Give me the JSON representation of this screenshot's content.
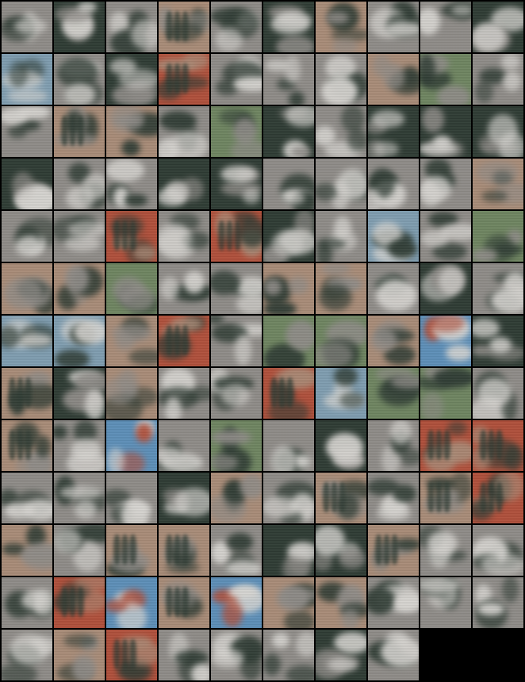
{
  "palette": {
    "sky": "#7f9db0",
    "gray": "#8f8c88",
    "tan": "#a98c78",
    "green_dark": "#2f3c34",
    "green": "#6f8561",
    "red": "#b0503b",
    "blue": "#5d8fb8",
    "white": "#d8d6d2",
    "black": "#000000"
  },
  "tiles": [
    "gray",
    "dark",
    "gray",
    "tan",
    "gray",
    "dark",
    "tan",
    "gray",
    "gray",
    "dark",
    "sky",
    "gray",
    "dark",
    "red",
    "gray",
    "gray",
    "gray",
    "tan",
    "green",
    "gray",
    "gray",
    "tan",
    "tan",
    "gray",
    "green",
    "dark",
    "gray",
    "dark",
    "dark",
    "dark",
    "dark",
    "gray",
    "gray",
    "dark",
    "dark",
    "gray",
    "gray",
    "gray",
    "gray",
    "tan",
    "gray",
    "gray",
    "red",
    "gray",
    "red",
    "dark",
    "gray",
    "sky",
    "gray",
    "green",
    "tan",
    "tan",
    "green",
    "gray",
    "gray",
    "tan",
    "tan",
    "gray",
    "dark",
    "gray",
    "sky",
    "sky",
    "tan",
    "red",
    "gray",
    "green",
    "green",
    "tan",
    "blue",
    "dark",
    "tan",
    "dark",
    "tan",
    "gray",
    "gray",
    "red",
    "sky",
    "green",
    "green",
    "gray",
    "tan",
    "gray",
    "blue",
    "gray",
    "green",
    "gray",
    "dark",
    "gray",
    "red",
    "red",
    "gray",
    "gray",
    "gray",
    "dark",
    "tan",
    "gray",
    "tan",
    "gray",
    "tan",
    "red",
    "tan",
    "gray",
    "tan",
    "tan",
    "gray",
    "dark",
    "dark",
    "tan",
    "gray",
    "gray",
    "gray",
    "red",
    "blue",
    "tan",
    "blue",
    "tan",
    "tan",
    "gray",
    "gray",
    "gray",
    "gray",
    "tan",
    "red",
    "gray",
    "gray",
    "gray",
    "dark",
    "gray",
    "black",
    "black"
  ]
}
